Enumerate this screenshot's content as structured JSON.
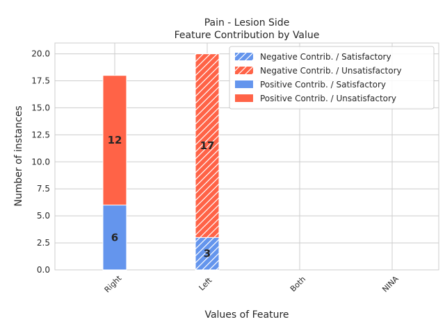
{
  "chart_data": {
    "type": "bar",
    "stacked": true,
    "title": "Pain - Lesion Side",
    "subtitle": "Feature Contribution by Value",
    "xlabel": "Values of Feature",
    "ylabel": "Number of instances",
    "categories": [
      "Right",
      "Left",
      "Both",
      "NINA"
    ],
    "ylim": [
      0,
      21
    ],
    "yticks": [
      0.0,
      2.5,
      5.0,
      7.5,
      10.0,
      12.5,
      15.0,
      17.5,
      20.0
    ],
    "ytick_labels": [
      "0.0",
      "2.5",
      "5.0",
      "7.5",
      "10.0",
      "12.5",
      "15.0",
      "17.5",
      "20.0"
    ],
    "grid": true,
    "legend_position": "top-right",
    "series": [
      {
        "name": "Negative Contrib. / Satisfactory",
        "color": "#6495ED",
        "hatch": true,
        "values": [
          0,
          3,
          0,
          0
        ]
      },
      {
        "name": "Negative Contrib. / Unsatisfactory",
        "color": "#FF6347",
        "hatch": true,
        "values": [
          0,
          17,
          0,
          0
        ]
      },
      {
        "name": "Positive Contrib. / Satisfactory",
        "color": "#6495ED",
        "hatch": false,
        "values": [
          6,
          0,
          0,
          0
        ]
      },
      {
        "name": "Positive Contrib. / Unsatisfactory",
        "color": "#FF6347",
        "hatch": false,
        "values": [
          12,
          0,
          0,
          0
        ]
      }
    ],
    "stack_order": [
      [
        "Positive Contrib. / Satisfactory",
        "Positive Contrib. / Unsatisfactory"
      ],
      [
        "Negative Contrib. / Satisfactory",
        "Negative Contrib. / Unsatisfactory"
      ]
    ]
  }
}
